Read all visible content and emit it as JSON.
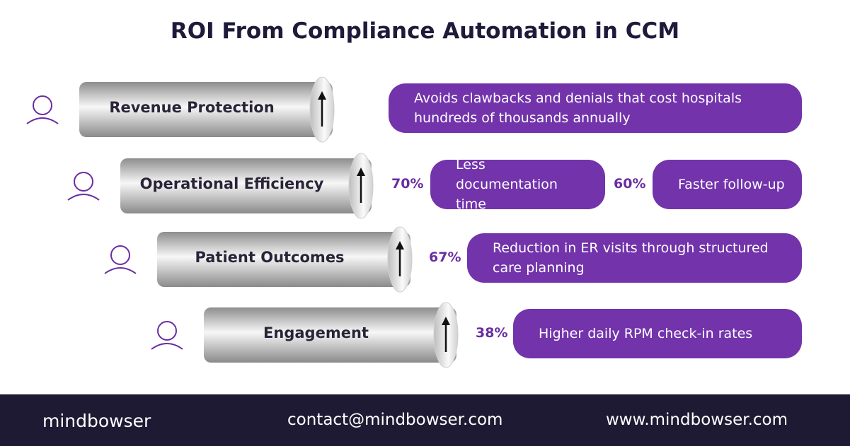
{
  "title": "ROI From Compliance Automation in CCM",
  "rows": [
    {
      "label": "Revenue Protection",
      "stats": [
        {
          "text": "Avoids clawbacks and denials that cost hospitals hundreds of thousands annually"
        }
      ]
    },
    {
      "label": "Operational Efficiency",
      "stats": [
        {
          "percent": "70%",
          "text": "Less documentation time"
        },
        {
          "percent": "60%",
          "text": "Faster follow-up"
        }
      ]
    },
    {
      "label": "Patient Outcomes",
      "stats": [
        {
          "percent": "67%",
          "text": "Reduction in ER visits through structured care planning"
        }
      ]
    },
    {
      "label": "Engagement",
      "stats": [
        {
          "percent": "38%",
          "text": "Higher daily RPM check-in rates"
        }
      ]
    }
  ],
  "footer": {
    "brand": "mindbowser",
    "email": "contact@mindbowser.com",
    "website": "www.mindbowser.com"
  }
}
